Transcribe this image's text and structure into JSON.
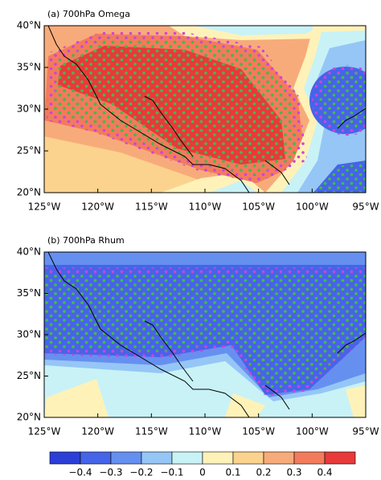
{
  "panels": [
    {
      "title": "(a) 700hPa  Omega",
      "xlim": [
        -125,
        -95
      ],
      "ylim": [
        20,
        40
      ],
      "xticks": [
        {
          "value": -125,
          "label": "125°W"
        },
        {
          "value": -120,
          "label": "120°W"
        },
        {
          "value": -115,
          "label": "115°W"
        },
        {
          "value": -110,
          "label": "110°W"
        },
        {
          "value": -105,
          "label": "105°W"
        },
        {
          "value": -100,
          "label": "100°W"
        },
        {
          "value": -95,
          "label": "95°W"
        }
      ],
      "yticks": [
        {
          "value": 20,
          "label": "20°N"
        },
        {
          "value": 25,
          "label": "25°N"
        },
        {
          "value": 30,
          "label": "30°N"
        },
        {
          "value": 35,
          "label": "35°N"
        },
        {
          "value": 40,
          "label": "40°N"
        }
      ]
    },
    {
      "title": "(b) 700hPa  Rhum",
      "xlim": [
        -125,
        -95
      ],
      "ylim": [
        20,
        40
      ],
      "xticks": [
        {
          "value": -125,
          "label": "125°W"
        },
        {
          "value": -120,
          "label": "120°W"
        },
        {
          "value": -115,
          "label": "115°W"
        },
        {
          "value": -110,
          "label": "110°W"
        },
        {
          "value": -105,
          "label": "105°W"
        },
        {
          "value": -100,
          "label": "100°W"
        },
        {
          "value": -95,
          "label": "95°W"
        }
      ],
      "yticks": [
        {
          "value": 20,
          "label": "20°N"
        },
        {
          "value": 25,
          "label": "25°N"
        },
        {
          "value": 30,
          "label": "30°N"
        },
        {
          "value": 35,
          "label": "35°N"
        },
        {
          "value": 40,
          "label": "40°N"
        }
      ]
    }
  ],
  "colorbar": {
    "ticks": [
      {
        "value": -0.4,
        "label": "−0.4"
      },
      {
        "value": -0.3,
        "label": "−0.3"
      },
      {
        "value": -0.2,
        "label": "−0.2"
      },
      {
        "value": -0.1,
        "label": "−0.1"
      },
      0,
      0.1,
      0.2,
      0.3,
      0.4
    ],
    "colors": [
      "#2b3fd8",
      "#4664e8",
      "#6690f0",
      "#95c6f6",
      "#c8f2f6",
      "#fff2b8",
      "#fcd38e",
      "#f8ab7a",
      "#f27b5c",
      "#e83a3a"
    ]
  }
}
